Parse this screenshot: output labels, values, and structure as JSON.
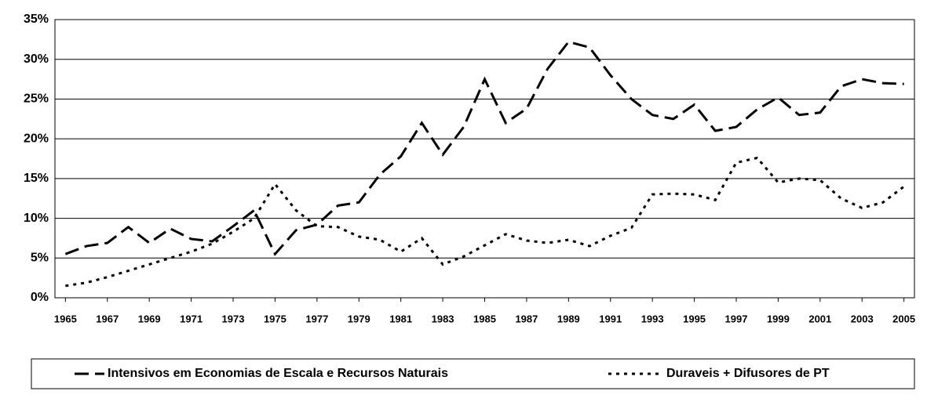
{
  "chart_data": {
    "type": "line",
    "x": [
      1965,
      1966,
      1967,
      1968,
      1969,
      1970,
      1971,
      1972,
      1973,
      1974,
      1975,
      1976,
      1977,
      1978,
      1979,
      1980,
      1981,
      1982,
      1983,
      1984,
      1985,
      1986,
      1987,
      1988,
      1989,
      1990,
      1991,
      1992,
      1993,
      1994,
      1995,
      1996,
      1997,
      1998,
      1999,
      2000,
      2001,
      2002,
      2003,
      2004,
      2005
    ],
    "series": [
      {
        "name": "Intensivos em Economias de Escala e Recursos Naturais",
        "color": "#000000",
        "dash": "dashed",
        "values": [
          5.5,
          6.5,
          6.9,
          8.9,
          6.9,
          8.7,
          7.4,
          7.1,
          9.0,
          11.0,
          5.5,
          8.5,
          9.2,
          11.6,
          12.0,
          15.5,
          17.8,
          22.0,
          18.0,
          21.5,
          27.5,
          22.0,
          23.8,
          28.8,
          32.2,
          31.5,
          28.0,
          25.0,
          23.0,
          22.5,
          24.3,
          21.0,
          21.5,
          23.7,
          25.2,
          23.0,
          23.3,
          26.6,
          27.5,
          27.0,
          26.9
        ]
      },
      {
        "name": "Duraveis + Difusores de PT",
        "color": "#000000",
        "dash": "dotted",
        "values": [
          1.5,
          1.9,
          2.6,
          3.4,
          4.2,
          5.0,
          5.8,
          6.8,
          8.3,
          10.0,
          14.3,
          11.0,
          9.0,
          8.9,
          7.7,
          7.3,
          5.8,
          7.5,
          4.2,
          5.2,
          6.6,
          8.0,
          7.2,
          6.9,
          7.3,
          6.5,
          7.8,
          8.8,
          13.0,
          13.1,
          13.0,
          12.3,
          17.0,
          17.6,
          14.5,
          15.0,
          14.8,
          12.5,
          11.3,
          12.0,
          14.0
        ]
      }
    ],
    "xlim": [
      1964.5,
      2005.5
    ],
    "xticks": [
      1965,
      1967,
      1969,
      1971,
      1973,
      1975,
      1977,
      1979,
      1981,
      1983,
      1985,
      1987,
      1989,
      1991,
      1993,
      1995,
      1997,
      1999,
      2001,
      2003,
      2005
    ],
    "ylim": [
      0,
      35
    ],
    "yticks": [
      {
        "value": 0,
        "label": "0%"
      },
      {
        "value": 5,
        "label": "5%"
      },
      {
        "value": 10,
        "label": "10%"
      },
      {
        "value": 15,
        "label": "15%"
      },
      {
        "value": 20,
        "label": "20%"
      },
      {
        "value": 25,
        "label": "25%"
      },
      {
        "value": 30,
        "label": "30%"
      },
      {
        "value": 35,
        "label": "35%"
      }
    ],
    "grid": true,
    "legend": "bottom"
  }
}
